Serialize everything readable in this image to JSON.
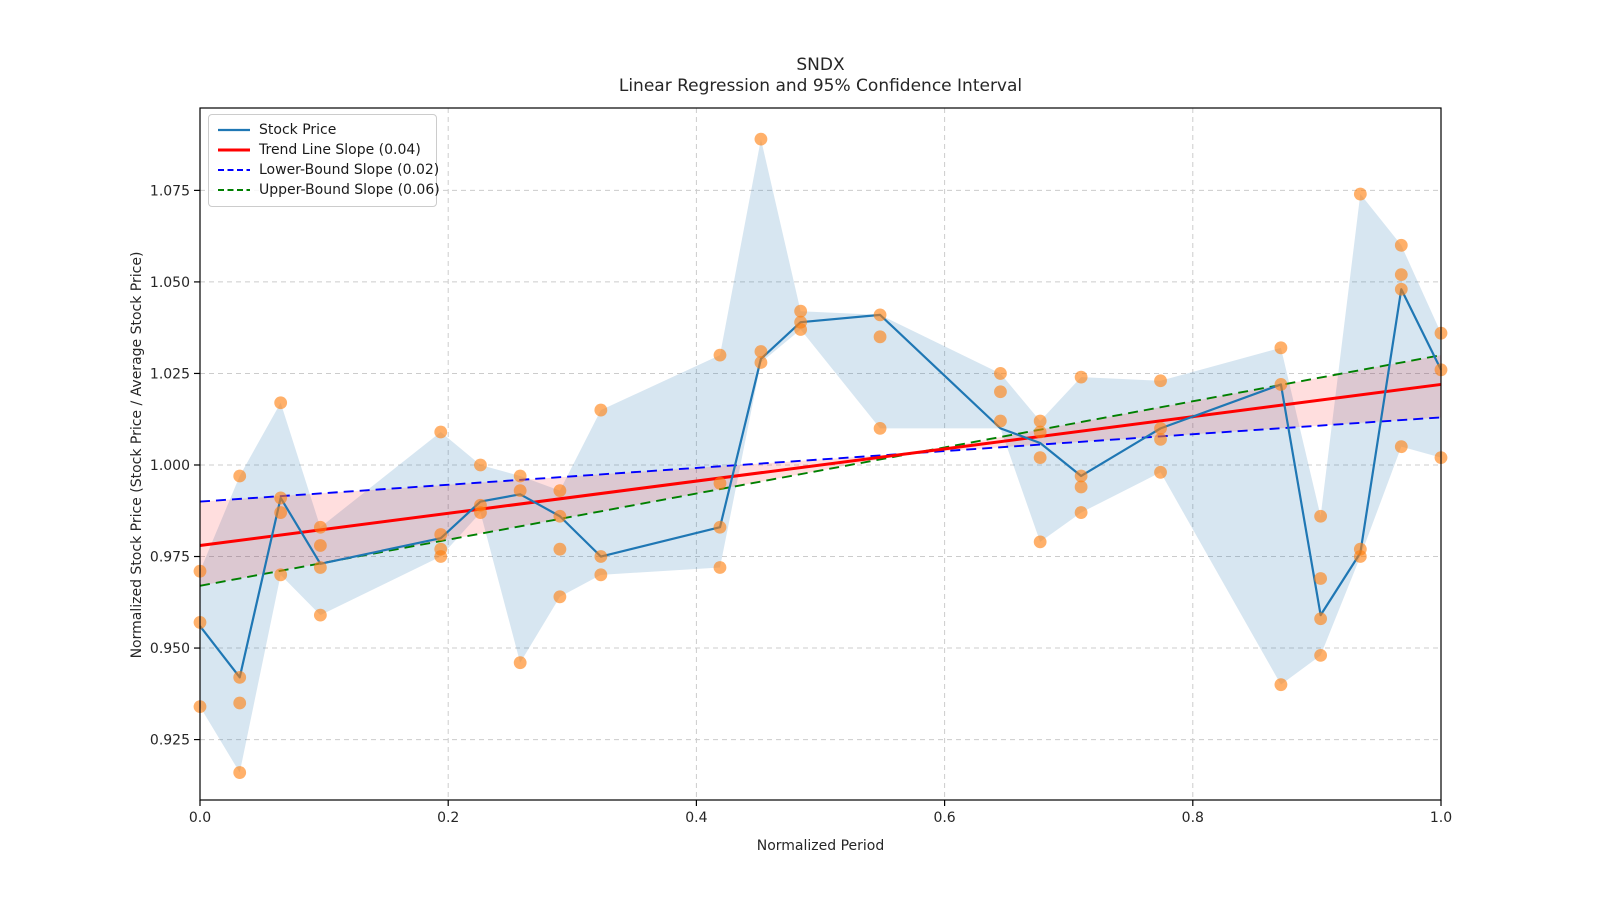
{
  "chart_data": {
    "type": "line",
    "title": "SNDX",
    "subtitle": "Linear Regression and 95% Confidence Interval",
    "xlabel": "Normalized Period",
    "ylabel": "Normalized Stock Price (Stock Price / Average Stock Price)",
    "xlim": [
      0.0,
      1.0
    ],
    "ylim": [
      0.9085,
      1.0975
    ],
    "xticks": [
      0.0,
      0.2,
      0.4,
      0.6,
      0.8,
      1.0
    ],
    "yticks": [
      0.925,
      0.95,
      0.975,
      1.0,
      1.025,
      1.05,
      1.075
    ],
    "grid": true,
    "legend_position": "upper left",
    "legend": [
      {
        "label": "Stock Price",
        "color": "#1f77b4",
        "style": "solid",
        "width": 2.2
      },
      {
        "label": "Trend Line Slope (0.04)",
        "color": "#ff0000",
        "style": "solid",
        "width": 3
      },
      {
        "label": "Lower-Bound Slope (0.02)",
        "color": "#0000ff",
        "style": "dashed",
        "width": 2
      },
      {
        "label": "Upper-Bound Slope (0.06)",
        "color": "#008000",
        "style": "dashed",
        "width": 2
      }
    ],
    "samples": [
      {
        "x": 0.0,
        "dots": [
          0.971,
          0.957,
          0.934
        ],
        "line": 0.956
      },
      {
        "x": 0.032,
        "dots": [
          0.997,
          0.942,
          0.935,
          0.916
        ],
        "line": 0.942
      },
      {
        "x": 0.065,
        "dots": [
          1.017,
          0.991,
          0.987,
          0.97
        ],
        "line": 0.991
      },
      {
        "x": 0.097,
        "dots": [
          0.983,
          0.978,
          0.972,
          0.959
        ],
        "line": 0.973
      },
      {
        "x": 0.194,
        "dots": [
          1.009,
          0.981,
          0.977,
          0.975
        ],
        "line": 0.98
      },
      {
        "x": 0.226,
        "dots": [
          1.0,
          0.989,
          0.987
        ],
        "line": 0.99
      },
      {
        "x": 0.258,
        "dots": [
          0.997,
          0.993,
          0.946
        ],
        "line": 0.992
      },
      {
        "x": 0.29,
        "dots": [
          0.993,
          0.986,
          0.977,
          0.964
        ],
        "line": 0.986
      },
      {
        "x": 0.323,
        "dots": [
          1.015,
          0.975,
          0.97
        ],
        "line": 0.975
      },
      {
        "x": 0.419,
        "dots": [
          1.03,
          0.995,
          0.983,
          0.972
        ],
        "line": 0.983
      },
      {
        "x": 0.452,
        "dots": [
          1.089,
          1.031,
          1.028
        ],
        "line": 1.029
      },
      {
        "x": 0.484,
        "dots": [
          1.042,
          1.039,
          1.037
        ],
        "line": 1.039
      },
      {
        "x": 0.548,
        "dots": [
          1.041,
          1.035,
          1.01
        ],
        "line": 1.041
      },
      {
        "x": 0.645,
        "dots": [
          1.025,
          1.02,
          1.012
        ],
        "line": 1.01
      },
      {
        "x": 0.677,
        "dots": [
          1.012,
          1.009,
          1.002,
          0.979
        ],
        "line": 1.006
      },
      {
        "x": 0.71,
        "dots": [
          1.024,
          0.997,
          0.994,
          0.987
        ],
        "line": 0.997
      },
      {
        "x": 0.774,
        "dots": [
          1.023,
          1.01,
          1.007,
          0.998
        ],
        "line": 1.01
      },
      {
        "x": 0.871,
        "dots": [
          1.032,
          1.022,
          0.94
        ],
        "line": 1.022
      },
      {
        "x": 0.903,
        "dots": [
          0.986,
          0.969,
          0.958,
          0.948
        ],
        "line": 0.959
      },
      {
        "x": 0.935,
        "dots": [
          1.074,
          0.977,
          0.975
        ],
        "line": 0.976
      },
      {
        "x": 0.968,
        "dots": [
          1.06,
          1.052,
          1.048,
          1.005
        ],
        "line": 1.048
      },
      {
        "x": 1.0,
        "dots": [
          1.036,
          1.026,
          1.002
        ],
        "line": 1.026
      }
    ],
    "trend_line": {
      "name": "Trend Line",
      "slope": 0.04,
      "y_start": 0.978,
      "y_end": 1.022
    },
    "lower_bound": {
      "name": "Lower-Bound",
      "slope": 0.02,
      "y_start": 0.99,
      "y_end": 1.013
    },
    "upper_bound": {
      "name": "Upper-Bound",
      "slope": 0.06,
      "y_start": 0.967,
      "y_end": 1.03
    },
    "colors": {
      "stock_line": "#1f77b4",
      "scatter": "#ff7f0e",
      "scatter_opacity": 0.62,
      "trend": "#ff0000",
      "lower": "#0000ff",
      "upper": "#008000",
      "band_blue": "rgba(31,119,180,0.18)",
      "band_pink": "rgba(255,0,0,0.13)",
      "grid": "#cccccc",
      "spine": "#000000",
      "tick_text": "#262626"
    }
  }
}
